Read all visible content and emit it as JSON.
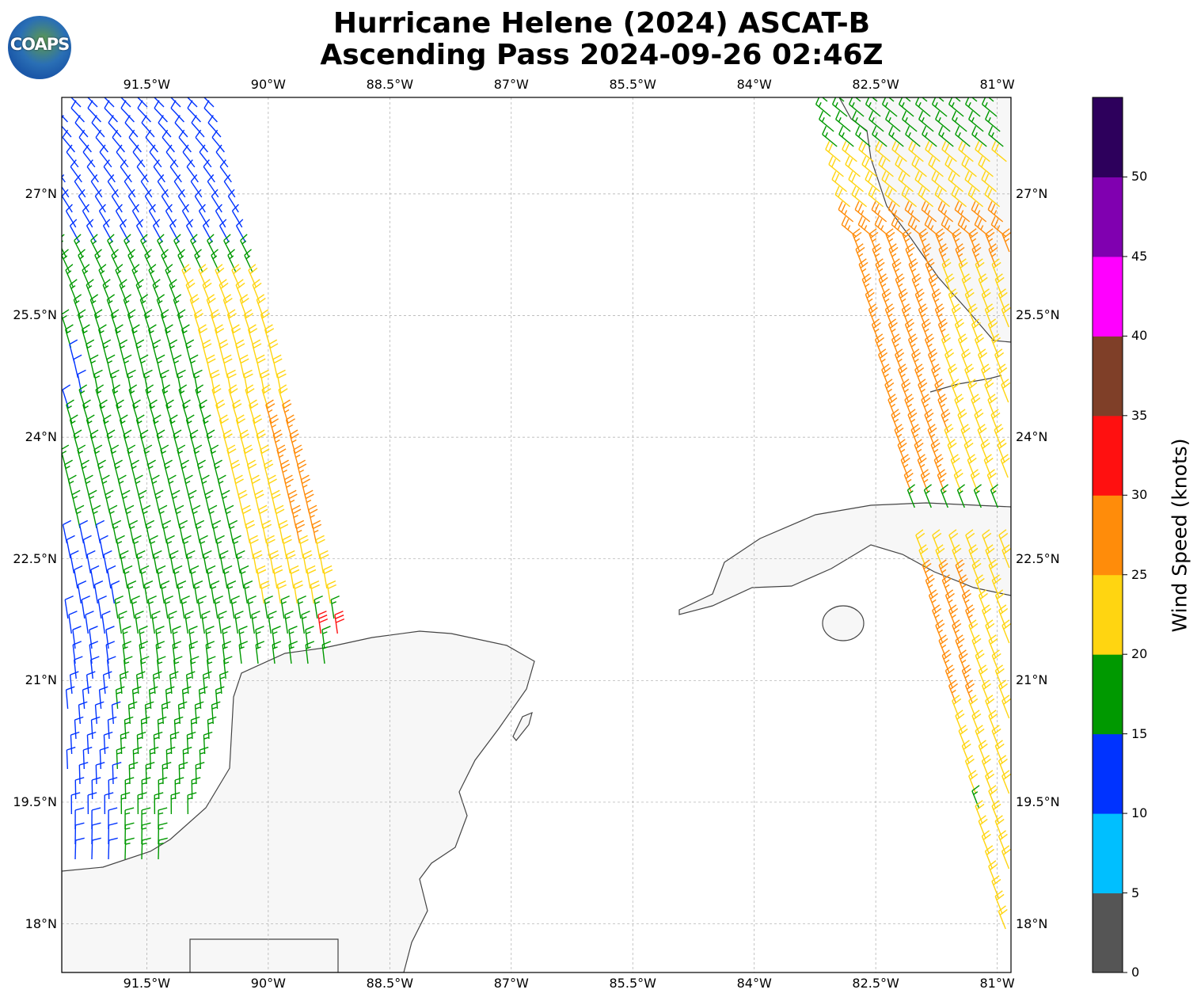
{
  "title": {
    "line1": "Hurricane Helene (2024) ASCAT-B",
    "line2": "Ascending Pass 2024-09-26 02:46Z"
  },
  "logo": {
    "text": "COAPS"
  },
  "map": {
    "lon_range": [
      -92.55,
      -80.83
    ],
    "lat_range": [
      17.4,
      28.19
    ],
    "lon_ticks": [
      {
        "v": -91.5,
        "label": "91.5°W"
      },
      {
        "v": -90,
        "label": "90°W"
      },
      {
        "v": -88.5,
        "label": "88.5°W"
      },
      {
        "v": -87,
        "label": "87°W"
      },
      {
        "v": -85.5,
        "label": "85.5°W"
      },
      {
        "v": -84,
        "label": "84°W"
      },
      {
        "v": -82.5,
        "label": "82.5°W"
      },
      {
        "v": -81,
        "label": "81°W"
      }
    ],
    "lat_ticks": [
      {
        "v": 27,
        "label": "27°N"
      },
      {
        "v": 25.5,
        "label": "25.5°N"
      },
      {
        "v": 24,
        "label": "24°N"
      },
      {
        "v": 22.5,
        "label": "22.5°N"
      },
      {
        "v": 21,
        "label": "21°N"
      },
      {
        "v": 19.5,
        "label": "19.5°N"
      },
      {
        "v": 18,
        "label": "18°N"
      }
    ]
  },
  "swaths": [
    {
      "name": "western",
      "default_kt": 17,
      "zones": [
        {
          "lat": [
            26.4,
            29
          ],
          "edge_deg": [
            0,
            9
          ],
          "kt": 12
        },
        {
          "lat": [
            17,
            22.8
          ],
          "lon": [
            -93,
            -91.9
          ],
          "kt": 12
        },
        {
          "lat": [
            24.3,
            25.0
          ],
          "lon": [
            -93,
            -92.3
          ],
          "kt": 12
        },
        {
          "lat": [
            21.8,
            25.9
          ],
          "edge_deg": [
            0,
            0.9
          ],
          "kt": 22
        },
        {
          "lat": [
            22.6,
            24.2
          ],
          "edge_deg": [
            0,
            0.25
          ],
          "kt": 27
        },
        {
          "lat": [
            21.5,
            21.75
          ],
          "lon": [
            -89.5,
            -89.0
          ],
          "kt": 32
        }
      ]
    },
    {
      "name": "eastern",
      "default_kt": 22,
      "zones": [
        {
          "lat": [
            27.5,
            29
          ],
          "kt": 17
        },
        {
          "lat": [
            23.1,
            26.7
          ],
          "kt": 27
        },
        {
          "lat": [
            23.1,
            26.0
          ],
          "lon": [
            -81.6,
            -80
          ],
          "kt": 22
        },
        {
          "lat": [
            22.95,
            23.15
          ],
          "kt": 17
        },
        {
          "lat": [
            20.6,
            22.3
          ],
          "lon": [
            -82.1,
            -81.3
          ],
          "kt": 27
        },
        {
          "lat": [
            19.25,
            19.5
          ],
          "lon": [
            -81.4,
            -81.1
          ],
          "kt": 17
        }
      ]
    }
  ],
  "colorbar": {
    "label": "Wind Speed (knots)",
    "bins": [
      {
        "min": 0,
        "max": 5,
        "color": "#555555"
      },
      {
        "min": 5,
        "max": 10,
        "color": "#00bfff"
      },
      {
        "min": 10,
        "max": 15,
        "color": "#0033ff"
      },
      {
        "min": 15,
        "max": 20,
        "color": "#009900"
      },
      {
        "min": 20,
        "max": 25,
        "color": "#ffd511"
      },
      {
        "min": 25,
        "max": 30,
        "color": "#ff8c0a"
      },
      {
        "min": 30,
        "max": 35,
        "color": "#ff1010"
      },
      {
        "min": 35,
        "max": 40,
        "color": "#7f3f28"
      },
      {
        "min": 40,
        "max": 45,
        "color": "#ff00ff"
      },
      {
        "min": 45,
        "max": 50,
        "color": "#8000b0"
      },
      {
        "min": 50,
        "max": 55,
        "color": "#2d005c"
      }
    ],
    "ticks": [
      "0",
      "5",
      "10",
      "15",
      "20",
      "25",
      "30",
      "35",
      "40",
      "45",
      "50"
    ]
  }
}
